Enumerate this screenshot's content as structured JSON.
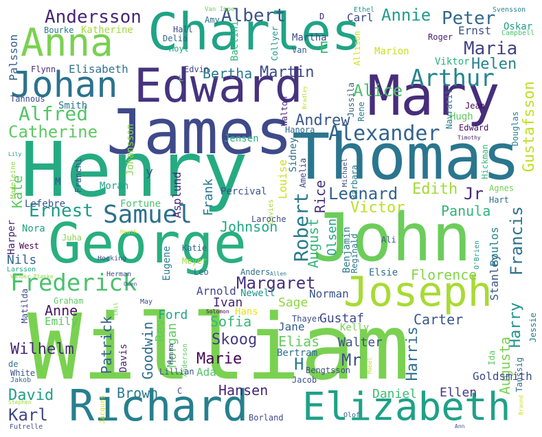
{
  "word_cloud": {
    "words": [
      {
        "text": "William",
        "color": "#7ad151"
      },
      {
        "text": "John",
        "color": "#6ccd5a"
      },
      {
        "text": "Henry",
        "color": "#25ab82"
      },
      {
        "text": "James",
        "color": "#3e4a89"
      },
      {
        "text": "Thomas",
        "color": "#2a768e"
      },
      {
        "text": "Charles",
        "color": "#20a386"
      },
      {
        "text": "George",
        "color": "#29af7f"
      },
      {
        "text": "Richard",
        "color": "#277f8e"
      },
      {
        "text": "Edward",
        "color": "#46337e"
      },
      {
        "text": "Mary",
        "color": "#472d7b"
      },
      {
        "text": "Elizabeth",
        "color": "#1fa187"
      },
      {
        "text": "Joseph",
        "color": "#a8db34"
      },
      {
        "text": "Anna",
        "color": "#7ad151"
      },
      {
        "text": "Johan",
        "color": "#2c728e"
      },
      {
        "text": "Frederick",
        "color": "#4ac16d"
      },
      {
        "text": "Alexander",
        "color": "#33638d"
      },
      {
        "text": "Samuel",
        "color": "#2d708e"
      },
      {
        "text": "Arthur",
        "color": "#25858e"
      },
      {
        "text": "Alfred",
        "color": "#54c568"
      },
      {
        "text": "Andersson",
        "color": "#482677"
      },
      {
        "text": "Albert",
        "color": "#3b528b"
      },
      {
        "text": "Annie",
        "color": "#1f9e89"
      },
      {
        "text": "Peter",
        "color": "#31688e"
      },
      {
        "text": "Maria",
        "color": "#414487"
      },
      {
        "text": "Helen",
        "color": "#26818e"
      },
      {
        "text": "Martin",
        "color": "#3e4a89"
      },
      {
        "text": "Alice",
        "color": "#4ac16d"
      },
      {
        "text": "Bertha",
        "color": "#2a788e"
      },
      {
        "text": "Andrew",
        "color": "#38588c"
      },
      {
        "text": "Catherine",
        "color": "#5ec962"
      },
      {
        "text": "Margaret",
        "color": "#46307e"
      },
      {
        "text": "Ernest",
        "color": "#1e9c89"
      },
      {
        "text": "Robert",
        "color": "#297b8e"
      },
      {
        "text": "Leonard",
        "color": "#33638d"
      },
      {
        "text": "Victor",
        "color": "#bddf26"
      },
      {
        "text": "Edith",
        "color": "#a0da39"
      },
      {
        "text": "Panula",
        "color": "#2fb47c"
      },
      {
        "text": "Francis",
        "color": "#2c728e"
      },
      {
        "text": "Jr",
        "color": "#482878"
      },
      {
        "text": "Harry",
        "color": "#20928c"
      },
      {
        "text": "Florence",
        "color": "#84d44b"
      },
      {
        "text": "Gustafsson",
        "color": "#c2df23"
      },
      {
        "text": "Johnson",
        "color": "#22a884"
      },
      {
        "text": "Frank",
        "color": "#2a788e"
      },
      {
        "text": "Rice",
        "color": "#46327e"
      },
      {
        "text": "August",
        "color": "#32b67a"
      },
      {
        "text": "Karl",
        "color": "#3f4788"
      },
      {
        "text": "David",
        "color": "#1fa088"
      },
      {
        "text": "Brown",
        "color": "#29798e"
      },
      {
        "text": "Hansen",
        "color": "#482475"
      },
      {
        "text": "Daniel",
        "color": "#3dbc74"
      },
      {
        "text": "Ellen",
        "color": "#443983"
      },
      {
        "text": "Anne",
        "color": "#471365"
      },
      {
        "text": "Emily",
        "color": "#5ec962"
      },
      {
        "text": "Patrick",
        "color": "#34618d"
      },
      {
        "text": "Goodwin",
        "color": "#2e6e8e"
      },
      {
        "text": "Rev",
        "color": "#65cb5e"
      },
      {
        "text": "Ford",
        "color": "#20a486"
      },
      {
        "text": "Sofia",
        "color": "#35b779"
      },
      {
        "text": "Skoog",
        "color": "#443a83"
      },
      {
        "text": "Marie",
        "color": "#440154"
      },
      {
        "text": "Ada",
        "color": "#52c569"
      },
      {
        "text": "Elias",
        "color": "#65cb5e"
      },
      {
        "text": "Walter",
        "color": "#3b528b"
      },
      {
        "text": "Bertram",
        "color": "#2f6c8e"
      },
      {
        "text": "Mr",
        "color": "#3b528b"
      },
      {
        "text": "H",
        "color": "#2a788e"
      },
      {
        "text": "Harris",
        "color": "#2d708e"
      },
      {
        "text": "Augusta",
        "color": "#7ad151"
      },
      {
        "text": "Carter",
        "color": "#38588c"
      },
      {
        "text": "Gustaf",
        "color": "#3e4989"
      },
      {
        "text": "Sage",
        "color": "#8fd744"
      },
      {
        "text": "Ivan",
        "color": "#482475"
      },
      {
        "text": "Arnold",
        "color": "#404688"
      },
      {
        "text": "Newell",
        "color": "#1f968b"
      },
      {
        "text": "Norman",
        "color": "#3b528b"
      },
      {
        "text": "Hans",
        "color": "#e5e419"
      },
      {
        "text": "Jane",
        "color": "#365c8d"
      },
      {
        "text": "Kelly",
        "color": "#73d056"
      },
      {
        "text": "Elsie",
        "color": "#2c718e"
      },
      {
        "text": "Stanley",
        "color": "#39568c"
      },
      {
        "text": "Boulos",
        "color": "#25838e"
      },
      {
        "text": "Olsen",
        "color": "#1fa187"
      },
      {
        "text": "Benjamin",
        "color": "#2a788e"
      },
      {
        "text": "Nils",
        "color": "#32658e"
      },
      {
        "text": "Harper",
        "color": "#482173"
      },
      {
        "text": "Nora",
        "color": "#1fa088"
      },
      {
        "text": "Lefebre",
        "color": "#3b528b"
      },
      {
        "text": "Kate",
        "color": "#5ec962"
      },
      {
        "text": "Smith",
        "color": "#2a788e"
      },
      {
        "text": "Tannous",
        "color": "#3e4a89"
      },
      {
        "text": "Flynn",
        "color": "#472c7a"
      },
      {
        "text": "Elisabeth",
        "color": "#2c728e"
      },
      {
        "text": "Edvin",
        "color": "#404688"
      },
      {
        "text": "Palsson",
        "color": "#33638d"
      },
      {
        "text": "Bourke",
        "color": "#2a788e"
      },
      {
        "text": "Katherine",
        "color": "#a0da39"
      },
      {
        "text": "Hall",
        "color": "#3e4a89"
      },
      {
        "text": "Delia",
        "color": "#32658e"
      },
      {
        "text": "Hoyt",
        "color": "#22a884"
      },
      {
        "text": "Amy",
        "color": "#2e6e8e"
      },
      {
        "text": "Van Impe",
        "color": "#6ece58"
      },
      {
        "text": "Baclini",
        "color": "#32b67a"
      },
      {
        "text": "Collyer",
        "color": "#1f958b"
      },
      {
        "text": "Martha",
        "color": "#3e4a89"
      },
      {
        "text": "Van",
        "color": "#33638d"
      },
      {
        "text": "Carl",
        "color": "#3e4a89"
      },
      {
        "text": "D",
        "color": "#482878"
      },
      {
        "text": "Allison",
        "color": "#d2e21b"
      },
      {
        "text": "Marion",
        "color": "#c8e020"
      },
      {
        "text": "Ethel",
        "color": "#1f968b"
      },
      {
        "text": "Svensson",
        "color": "#26818e"
      },
      {
        "text": "Ernst",
        "color": "#3b528b"
      },
      {
        "text": "Oskar",
        "color": "#1f9e89"
      },
      {
        "text": "Campbell",
        "color": "#4ac16d"
      },
      {
        "text": "Roger",
        "color": "#482475"
      },
      {
        "text": "Viktor",
        "color": "#29af7f"
      },
      {
        "text": "E",
        "color": "#3dbc74"
      },
      {
        "text": "Hugh",
        "color": "#5ec962"
      },
      {
        "text": "Jean",
        "color": "#440154"
      },
      {
        "text": "Edward",
        "color": "#471164"
      },
      {
        "text": "Navratil",
        "color": "#287d8e"
      },
      {
        "text": "Douglas",
        "color": "#26828e"
      },
      {
        "text": "Timothy",
        "color": "#481f70"
      },
      {
        "text": "Hickman",
        "color": "#35b779"
      },
      {
        "text": "Agnes",
        "color": "#73d056"
      },
      {
        "text": "Hart",
        "color": "#2e6e8e"
      },
      {
        "text": "Jussila",
        "color": "#33638d"
      },
      {
        "text": "Rene",
        "color": "#2a788e"
      },
      {
        "text": "Bradley",
        "color": "#b5de2b"
      },
      {
        "text": "Walton",
        "color": "#472c7a"
      },
      {
        "text": "Hanora",
        "color": "#31688e"
      },
      {
        "text": "Jensen",
        "color": "#27ad81"
      },
      {
        "text": "Johansson",
        "color": "#84d44b"
      },
      {
        "text": "Sidney",
        "color": "#2e6e8e"
      },
      {
        "text": "Louise",
        "color": "#cae11f"
      },
      {
        "text": "Amelia",
        "color": "#404688"
      },
      {
        "text": "Michael",
        "color": "#3e4a89"
      },
      {
        "text": "Barbara",
        "color": "#2a788e"
      },
      {
        "text": "Percival",
        "color": "#3b528b"
      },
      {
        "text": "Moran",
        "color": "#1fa088"
      },
      {
        "text": "Asplund",
        "color": "#482878"
      },
      {
        "text": "Fortune",
        "color": "#4ac16d"
      },
      {
        "text": "y",
        "color": "#3b528b"
      },
      {
        "text": "M",
        "color": "#3e4a89"
      },
      {
        "text": "Franchi",
        "color": "#3b528b"
      },
      {
        "text": "Lily",
        "color": "#1f968b"
      },
      {
        "text": "Madeleine",
        "color": "#8fd744"
      },
      {
        "text": "Davies",
        "color": "#a0da39"
      },
      {
        "text": "Laroche",
        "color": "#3e4a89"
      },
      {
        "text": "Reginald",
        "color": "#2a788e"
      },
      {
        "text": "Ali",
        "color": "#3b528b"
      },
      {
        "text": "O'Brien",
        "color": "#1f968b"
      },
      {
        "text": "Juha",
        "color": "#84d44b"
      },
      {
        "text": "West",
        "color": "#440154"
      },
      {
        "text": "Heath",
        "color": "#c8e020"
      },
      {
        "text": "Katie",
        "color": "#32658e"
      },
      {
        "text": "Eugene",
        "color": "#287d8e"
      },
      {
        "text": "Meyer",
        "color": "#a0da39"
      },
      {
        "text": "Hocking",
        "color": "#3b528b"
      },
      {
        "text": "Leo",
        "color": "#31688e"
      },
      {
        "text": "Allen",
        "color": "#2a788e"
      },
      {
        "text": "Anders",
        "color": "#2e6e8e"
      },
      {
        "text": "Larsson",
        "color": "#22a884"
      },
      {
        "text": "Vander Planke",
        "color": "#8fd744"
      },
      {
        "text": "Herman",
        "color": "#3e4a89"
      },
      {
        "text": "Owen",
        "color": "#3b528b"
      },
      {
        "text": "Matilda",
        "color": "#3e4a89"
      },
      {
        "text": "Graham",
        "color": "#5ec962"
      },
      {
        "text": "Emil",
        "color": "#32658e"
      },
      {
        "text": "May",
        "color": "#7ad151"
      },
      {
        "text": "Solomon",
        "color": "#3e4a89"
      },
      {
        "text": "Morgan",
        "color": "#440154"
      },
      {
        "text": "Thayer",
        "color": "#5ec962"
      },
      {
        "text": "Wilhelm",
        "color": "#3e4a89"
      },
      {
        "text": "de",
        "color": "#482878"
      },
      {
        "text": "White",
        "color": "#2a788e"
      },
      {
        "text": "Jakob",
        "color": "#3b528b"
      },
      {
        "text": "Davis",
        "color": "#31688e"
      },
      {
        "text": "Hanna",
        "color": "#482475"
      },
      {
        "text": "Anderson",
        "color": "#3e4a89"
      },
      {
        "text": "Bengtsson",
        "color": "#5ec962"
      },
      {
        "text": "Mabel",
        "color": "#3e4a89"
      },
      {
        "text": "Jacob",
        "color": "#b5de2b"
      },
      {
        "text": "Ida",
        "color": "#3b528b"
      },
      {
        "text": "Taussig",
        "color": "#5ec962"
      },
      {
        "text": "Jessie",
        "color": "#2e6e8e"
      },
      {
        "text": "Lillian",
        "color": "#287d8e"
      },
      {
        "text": "C",
        "color": "#3b528b"
      },
      {
        "text": "Jacques",
        "color": "#3e4a89"
      },
      {
        "text": "Stephen",
        "color": "#c8e020"
      },
      {
        "text": "Futrelle",
        "color": "#a0da39"
      },
      {
        "text": "Borland",
        "color": "#3b528b"
      },
      {
        "text": "Olof",
        "color": "#3e4a89"
      },
      {
        "text": "Ann",
        "color": "#32658e"
      },
      {
        "text": "Braund",
        "color": "#3b528b"
      },
      {
        "text": "Goldsmith",
        "color": "#c8e020"
      },
      {
        "text": "L",
        "color": "#3e4a89"
      },
      {
        "text": "G",
        "color": "#5ec962"
      }
    ]
  }
}
